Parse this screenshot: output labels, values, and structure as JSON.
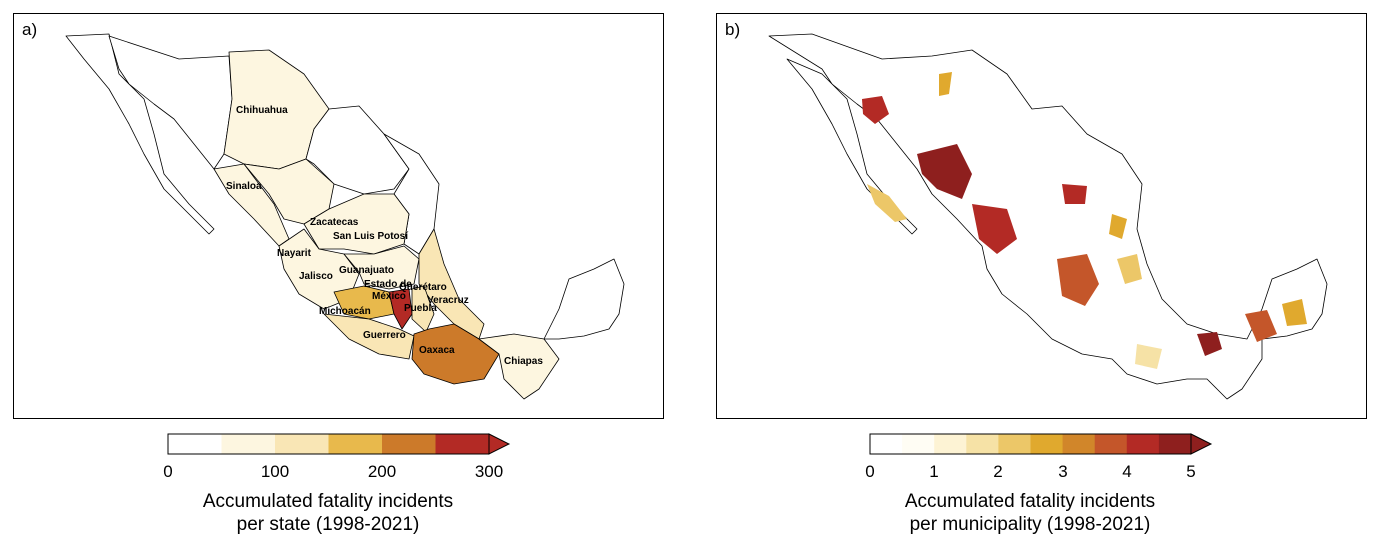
{
  "panels": [
    {
      "label": "a)",
      "state_labels": [
        "Chihuahua",
        "Sinaloa",
        "Zacatecas",
        "San Luis Potosí",
        "Nayarit",
        "Jalisco",
        "Guanajuato",
        "Estado de",
        "México",
        "Querétaro",
        "Michoacán",
        "Puebla",
        "Veracruz",
        "Guerrero",
        "Oaxaca",
        "Chiapas"
      ],
      "colorbar": {
        "ticks": [
          "0",
          "100",
          "200",
          "300"
        ],
        "title_line1": "Accumulated fatality incidents",
        "title_line2": "per state (1998-2021)",
        "colors": [
          "#ffffff",
          "#fdf6e0",
          "#f9e6b5",
          "#e8b94c",
          "#cc7a2a",
          "#b32a25"
        ]
      }
    },
    {
      "label": "b)",
      "colorbar": {
        "ticks": [
          "0",
          "1",
          "2",
          "3",
          "4",
          "5"
        ],
        "title_line1": "Accumulated fatality incidents",
        "title_line2": "per municipality (1998-2021)",
        "colors": [
          "#ffffff",
          "#fffdf4",
          "#fdf3d4",
          "#f6e2a6",
          "#ecc768",
          "#e0a92e",
          "#d1862a",
          "#c4562a",
          "#b32a25",
          "#8e1f1e"
        ]
      }
    }
  ]
}
